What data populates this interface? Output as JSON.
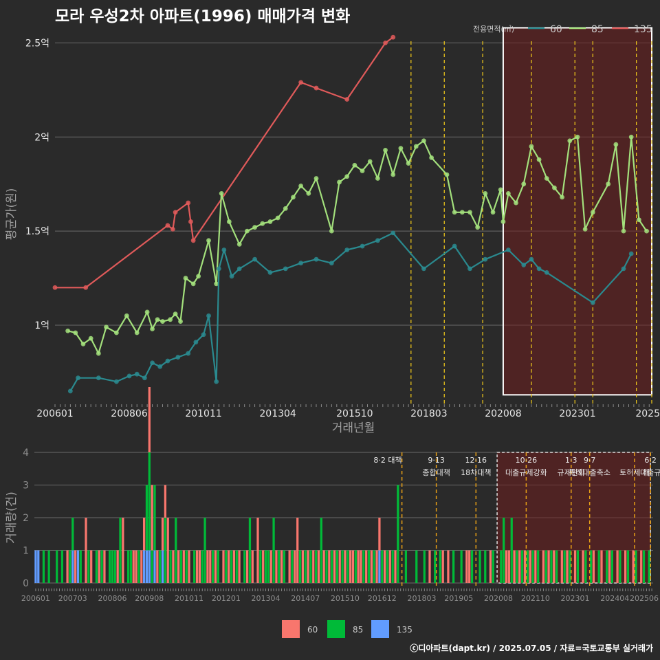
{
  "title": "모라 우성2차 아파트(1996) 매매가격 변화",
  "footer": "ⓒ디아파트(dapt.kr) / 2025.07.05 / 자료=국토교통부 실거래가",
  "colors": {
    "s60": "#2a8a8f",
    "s85": "#a3e07c",
    "s135": "#e05a5a",
    "b60": "#f8766d",
    "b85": "#00ba38",
    "b135": "#619cff"
  },
  "chart_data": [
    {
      "type": "line",
      "title": "모라 우성2차 아파트(1996) 매매가격 변화",
      "xlabel": "거래년월",
      "ylabel": "평균가(원)",
      "x_range": [
        "2006-01",
        "2025-06"
      ],
      "ylim": [
        0.58,
        2.6
      ],
      "x_tick_labels": [
        "200601",
        "200806",
        "201011",
        "201304",
        "201510",
        "201803",
        "202008",
        "202301",
        "2025"
      ],
      "y_ticks": [
        1.0,
        1.5,
        2.0,
        2.5
      ],
      "y_tick_labels": [
        "1억",
        "1.5억",
        "2억",
        "2.5억"
      ],
      "legend": {
        "title": "전용면적(㎡)",
        "position": "top-right",
        "labels": [
          "60",
          "85",
          "135"
        ]
      },
      "grid": true,
      "highlight_box": {
        "from": "2020-08",
        "to": "2025-06"
      },
      "event_lines": [
        "2017-08",
        "2018-09",
        "2019-12",
        "2021-07",
        "2022-12",
        "2023-07",
        "2024-12",
        "2025-06"
      ],
      "series": [
        {
          "name": "135",
          "unit": "억원",
          "x": [
            "2006-01",
            "2007-01",
            "2009-09",
            "2009-11",
            "2009-12",
            "2010-05",
            "2010-06",
            "2010-07",
            "2014-01",
            "2014-07",
            "2015-07",
            "2016-10",
            "2017-01"
          ],
          "y": [
            1.2,
            1.2,
            1.53,
            1.51,
            1.6,
            1.65,
            1.55,
            1.45,
            2.29,
            2.26,
            2.2,
            2.5,
            2.53
          ]
        },
        {
          "name": "85",
          "unit": "억원",
          "x": [
            "2006-06",
            "2006-09",
            "2006-12",
            "2007-03",
            "2007-06",
            "2007-09",
            "2008-01",
            "2008-05",
            "2008-09",
            "2009-01",
            "2009-03",
            "2009-05",
            "2009-07",
            "2009-10",
            "2009-12",
            "2010-02",
            "2010-04",
            "2010-07",
            "2010-09",
            "2011-01",
            "2011-04",
            "2011-06",
            "2011-09",
            "2012-01",
            "2012-04",
            "2012-07",
            "2012-10",
            "2013-01",
            "2013-04",
            "2013-07",
            "2013-10",
            "2014-01",
            "2014-04",
            "2014-07",
            "2015-01",
            "2015-04",
            "2015-07",
            "2015-10",
            "2016-01",
            "2016-04",
            "2016-07",
            "2016-10",
            "2017-01",
            "2017-04",
            "2017-07",
            "2017-10",
            "2018-01",
            "2018-04",
            "2018-10",
            "2019-01",
            "2019-04",
            "2019-07",
            "2019-10",
            "2020-01",
            "2020-04",
            "2020-07",
            "2020-08",
            "2020-10",
            "2021-01",
            "2021-04",
            "2021-07",
            "2021-10",
            "2022-01",
            "2022-04",
            "2022-07",
            "2022-10",
            "2023-01",
            "2023-04",
            "2023-07",
            "2024-01",
            "2024-04",
            "2024-07",
            "2024-10",
            "2025-01",
            "2025-04"
          ],
          "y": [
            0.97,
            0.96,
            0.9,
            0.93,
            0.85,
            0.99,
            0.96,
            1.05,
            0.96,
            1.07,
            0.98,
            1.03,
            1.02,
            1.03,
            1.06,
            1.02,
            1.25,
            1.22,
            1.26,
            1.45,
            1.22,
            1.7,
            1.55,
            1.43,
            1.5,
            1.52,
            1.54,
            1.55,
            1.57,
            1.62,
            1.68,
            1.74,
            1.7,
            1.78,
            1.5,
            1.76,
            1.79,
            1.85,
            1.82,
            1.87,
            1.78,
            1.93,
            1.8,
            1.94,
            1.86,
            1.95,
            1.98,
            1.89,
            1.8,
            1.6,
            1.6,
            1.6,
            1.52,
            1.7,
            1.6,
            1.72,
            1.55,
            1.7,
            1.65,
            1.75,
            1.95,
            1.88,
            1.78,
            1.73,
            1.68,
            1.98,
            2.0,
            1.51,
            1.6,
            1.75,
            1.96,
            1.5,
            2.0,
            1.56,
            1.5
          ]
        },
        {
          "name": "60",
          "unit": "억원",
          "x": [
            "2006-07",
            "2006-10",
            "2007-06",
            "2008-01",
            "2008-06",
            "2008-09",
            "2008-12",
            "2009-03",
            "2009-06",
            "2009-09",
            "2010-01",
            "2010-05",
            "2010-08",
            "2010-11",
            "2011-01",
            "2011-04",
            "2011-05",
            "2011-07",
            "2011-10",
            "2012-01",
            "2012-07",
            "2013-01",
            "2013-07",
            "2014-01",
            "2014-07",
            "2015-01",
            "2015-07",
            "2016-01",
            "2016-07",
            "2017-01",
            "2018-01",
            "2019-01",
            "2019-07",
            "2020-01",
            "2020-10",
            "2021-04",
            "2021-07",
            "2021-10",
            "2022-01",
            "2023-07",
            "2024-07",
            "2024-10"
          ],
          "y": [
            0.65,
            0.72,
            0.72,
            0.7,
            0.73,
            0.74,
            0.72,
            0.8,
            0.78,
            0.81,
            0.83,
            0.85,
            0.91,
            0.95,
            1.05,
            0.7,
            1.3,
            1.4,
            1.26,
            1.3,
            1.35,
            1.28,
            1.3,
            1.33,
            1.35,
            1.33,
            1.4,
            1.42,
            1.45,
            1.49,
            1.3,
            1.42,
            1.3,
            1.35,
            1.4,
            1.32,
            1.35,
            1.3,
            1.28,
            1.12,
            1.3,
            1.38
          ]
        }
      ]
    },
    {
      "type": "bar",
      "xlabel": "",
      "ylabel": "거래량(건)",
      "ylim": [
        0,
        4
      ],
      "y_ticks": [
        0,
        1,
        2,
        3,
        4
      ],
      "x_tick_labels": [
        "200601",
        "200703",
        "200806",
        "200908",
        "201011",
        "201201",
        "201304",
        "201407",
        "201510",
        "201612",
        "201803",
        "201905",
        "202008",
        "202110",
        "202301",
        "202404",
        "202506"
      ],
      "legend": {
        "position": "bottom",
        "labels": [
          "60",
          "85",
          "135"
        ]
      },
      "stacked": true,
      "events": [
        {
          "month": "2017-08",
          "line1": "8·2 대책",
          "line2": ""
        },
        {
          "month": "2018-09",
          "line1": "9·13",
          "line2": "종합대책"
        },
        {
          "month": "2019-12",
          "line1": "12·16",
          "line2": "18차대책"
        },
        {
          "month": "2021-07",
          "line1": "10·26",
          "line2": "대출규제강화"
        },
        {
          "month": "2022-12",
          "line1": "1·3",
          "line2": "규제완화"
        },
        {
          "month": "2023-07",
          "line1": "9·7",
          "line2": "특례대출축소"
        },
        {
          "month": "2024-12",
          "line1": "",
          "line2": "토허제 해"
        },
        {
          "month": "2025-06",
          "line1": "6·2",
          "line2": "대출규"
        }
      ],
      "series_by_month_note": "monthly transaction counts per area; months listed with non-zero counts",
      "series": [
        {
          "name": "60",
          "x": [
            "2007-01",
            "2007-04",
            "2007-08",
            "2007-10",
            "2008-01",
            "2008-03",
            "2008-08",
            "2008-10",
            "2009-02",
            "2009-03",
            "2009-05",
            "2009-06",
            "2009-08",
            "2009-09",
            "2009-11",
            "2010-01",
            "2010-02",
            "2010-03",
            "2010-05",
            "2010-07",
            "2010-09",
            "2010-11",
            "2011-02",
            "2011-03",
            "2011-06",
            "2011-07",
            "2011-09",
            "2011-12",
            "2012-02",
            "2012-04",
            "2012-06",
            "2012-09",
            "2012-11",
            "2013-01",
            "2013-03",
            "2013-06",
            "2013-08",
            "2013-10",
            "2014-01",
            "2014-03",
            "2014-04",
            "2014-06",
            "2014-08",
            "2014-10",
            "2014-12",
            "2015-02",
            "2015-04",
            "2015-06",
            "2015-08",
            "2015-10",
            "2015-12",
            "2016-01",
            "2016-03",
            "2016-04",
            "2016-06",
            "2016-08",
            "2016-10",
            "2016-11",
            "2017-01",
            "2017-03",
            "2017-05",
            "2018-06",
            "2018-11",
            "2019-01",
            "2019-08",
            "2019-09",
            "2020-05",
            "2020-11",
            "2020-12",
            "2021-02",
            "2021-04",
            "2021-06",
            "2021-08",
            "2021-10",
            "2022-01",
            "2022-03",
            "2022-05",
            "2022-08",
            "2022-10",
            "2023-01",
            "2023-04",
            "2023-08",
            "2023-11",
            "2024-02",
            "2024-05",
            "2024-08",
            "2024-11",
            "2025-02"
          ],
          "y": [
            1,
            1,
            2,
            1,
            1,
            1,
            1,
            2,
            1,
            1,
            1,
            1,
            2,
            2,
            1,
            1,
            1,
            2,
            1,
            1,
            1,
            1,
            1,
            1,
            1,
            1,
            1,
            1,
            1,
            1,
            1,
            1,
            1,
            2,
            1,
            1,
            1,
            1,
            1,
            1,
            2,
            1,
            1,
            1,
            1,
            1,
            1,
            1,
            1,
            1,
            1,
            1,
            1,
            1,
            1,
            1,
            1,
            1,
            1,
            1,
            1,
            1,
            1,
            1,
            1,
            1,
            1,
            1,
            1,
            1,
            1,
            1,
            1,
            1,
            1,
            1,
            1,
            1,
            1,
            1,
            1,
            1,
            1,
            1,
            1,
            1,
            1,
            1
          ]
        },
        {
          "name": "85",
          "x": [
            "2006-04",
            "2006-06",
            "2006-09",
            "2006-11",
            "2007-02",
            "2007-03",
            "2007-06",
            "2007-09",
            "2007-12",
            "2008-02",
            "2008-05",
            "2008-06",
            "2008-07",
            "2008-09",
            "2008-12",
            "2009-01",
            "2009-04",
            "2009-07",
            "2009-08",
            "2009-09",
            "2009-10",
            "2009-12",
            "2010-02",
            "2010-04",
            "2010-06",
            "2010-08",
            "2010-10",
            "2011-01",
            "2011-04",
            "2011-05",
            "2011-08",
            "2011-10",
            "2012-01",
            "2012-03",
            "2012-05",
            "2012-08",
            "2012-10",
            "2013-02",
            "2013-04",
            "2013-05",
            "2013-07",
            "2013-09",
            "2013-11",
            "2014-02",
            "2014-05",
            "2014-07",
            "2014-09",
            "2014-11",
            "2015-01",
            "2015-03",
            "2015-05",
            "2015-07",
            "2015-09",
            "2015-11",
            "2016-02",
            "2016-05",
            "2016-07",
            "2016-09",
            "2016-12",
            "2017-02",
            "2017-04",
            "2017-06",
            "2017-09",
            "2018-01",
            "2018-04",
            "2018-08",
            "2018-10",
            "2019-03",
            "2019-06",
            "2019-10",
            "2020-01",
            "2020-03",
            "2020-06",
            "2020-09",
            "2020-10",
            "2021-01",
            "2021-03",
            "2021-05",
            "2021-07",
            "2021-09",
            "2021-11",
            "2022-02",
            "2022-04",
            "2022-06",
            "2022-09",
            "2022-11",
            "2023-02",
            "2023-05",
            "2023-07",
            "2023-10",
            "2024-01",
            "2024-03",
            "2024-06",
            "2024-09",
            "2024-12",
            "2025-03",
            "2025-05"
          ],
          "y": [
            1,
            1,
            1,
            1,
            1,
            1,
            1,
            1,
            1,
            1,
            1,
            1,
            1,
            2,
            1,
            1,
            1,
            2,
            3,
            1,
            2,
            1,
            2,
            1,
            2,
            1,
            1,
            1,
            1,
            2,
            1,
            1,
            1,
            1,
            1,
            1,
            2,
            1,
            1,
            1,
            2,
            1,
            1,
            1,
            1,
            1,
            1,
            1,
            2,
            1,
            1,
            1,
            1,
            1,
            1,
            1,
            1,
            1,
            1,
            1,
            1,
            3,
            1,
            1,
            1,
            1,
            1,
            1,
            1,
            1,
            1,
            1,
            1,
            1,
            2,
            2,
            1,
            1,
            1,
            1,
            1,
            1,
            1,
            1,
            1,
            1,
            1,
            1,
            1,
            1,
            1,
            1,
            1,
            1,
            1,
            1,
            1
          ]
        },
        {
          "name": "135",
          "x": [
            "2006-01",
            "2006-02",
            "2007-03",
            "2007-05",
            "2009-06",
            "2009-07",
            "2009-08",
            "2009-10",
            "2010-01",
            "2016-11"
          ],
          "y": [
            1,
            1,
            1,
            1,
            1,
            1,
            1,
            1,
            1,
            1
          ]
        }
      ]
    }
  ]
}
